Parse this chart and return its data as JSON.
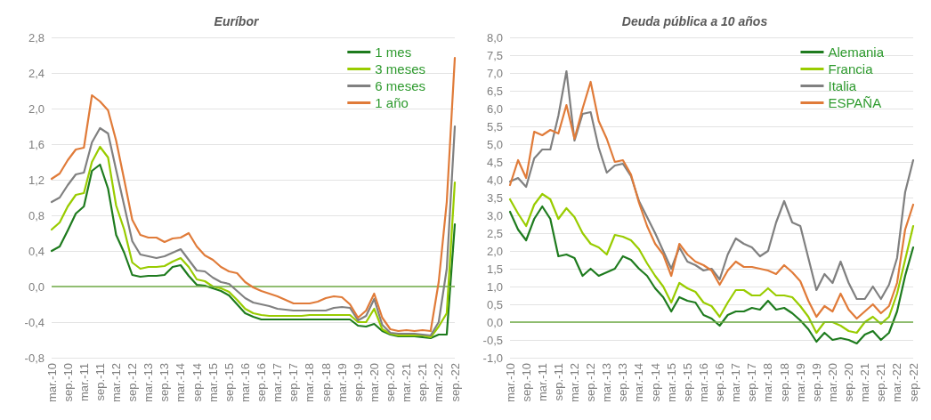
{
  "chart_data": [
    {
      "type": "line",
      "title": "Euríbor",
      "categories": [
        "mar.-10",
        null,
        "sep.-10",
        null,
        "mar.-11",
        null,
        "sep.-11",
        null,
        "mar.-12",
        null,
        "sep.-12",
        null,
        "mar.-13",
        null,
        "sep.-13",
        null,
        "mar.-14",
        null,
        "sep.-14",
        null,
        "mar.-15",
        null,
        "sep.-15",
        null,
        "mar.-16",
        null,
        "sep.-16",
        null,
        "mar.-17",
        null,
        "sep.-17",
        null,
        "mar.-18",
        null,
        "sep.-18",
        null,
        "mar.-19",
        null,
        "sep.-19",
        null,
        "mar.-20",
        null,
        "sep.-20",
        null,
        "mar.-21",
        null,
        "sep.-21",
        null,
        "mar.-22",
        null,
        "sep.-22"
      ],
      "series": [
        {
          "name": "1 mes",
          "color": "#1e7b1e",
          "values": [
            0.4,
            0.45,
            0.63,
            0.82,
            0.9,
            1.3,
            1.37,
            1.1,
            0.58,
            0.38,
            0.13,
            0.11,
            0.12,
            0.12,
            0.13,
            0.22,
            0.24,
            0.12,
            0.02,
            0.01,
            -0.02,
            -0.05,
            -0.1,
            -0.2,
            -0.3,
            -0.34,
            -0.37,
            -0.37,
            -0.37,
            -0.37,
            -0.37,
            -0.37,
            -0.37,
            -0.37,
            -0.37,
            -0.37,
            -0.37,
            -0.37,
            -0.44,
            -0.45,
            -0.42,
            -0.5,
            -0.54,
            -0.56,
            -0.56,
            -0.56,
            -0.57,
            -0.58,
            -0.54,
            -0.54,
            0.7
          ]
        },
        {
          "name": "3 meses",
          "color": "#99cc00",
          "values": [
            0.64,
            0.72,
            0.9,
            1.03,
            1.05,
            1.4,
            1.57,
            1.45,
            0.91,
            0.64,
            0.27,
            0.2,
            0.22,
            0.22,
            0.23,
            0.28,
            0.32,
            0.22,
            0.08,
            0.06,
            0.0,
            -0.02,
            -0.06,
            -0.15,
            -0.25,
            -0.3,
            -0.32,
            -0.33,
            -0.33,
            -0.33,
            -0.33,
            -0.33,
            -0.32,
            -0.32,
            -0.32,
            -0.32,
            -0.32,
            -0.32,
            -0.4,
            -0.4,
            -0.25,
            -0.48,
            -0.53,
            -0.55,
            -0.55,
            -0.55,
            -0.55,
            -0.57,
            -0.45,
            -0.3,
            1.17
          ]
        },
        {
          "name": "6 meses",
          "color": "#808080",
          "values": [
            0.95,
            1.0,
            1.14,
            1.26,
            1.28,
            1.62,
            1.78,
            1.72,
            1.31,
            0.91,
            0.51,
            0.36,
            0.34,
            0.32,
            0.34,
            0.38,
            0.42,
            0.3,
            0.18,
            0.17,
            0.1,
            0.05,
            0.03,
            -0.05,
            -0.13,
            -0.18,
            -0.2,
            -0.22,
            -0.25,
            -0.26,
            -0.27,
            -0.27,
            -0.27,
            -0.27,
            -0.27,
            -0.24,
            -0.23,
            -0.24,
            -0.38,
            -0.33,
            -0.14,
            -0.43,
            -0.52,
            -0.53,
            -0.53,
            -0.53,
            -0.54,
            -0.55,
            -0.4,
            0.2,
            1.8
          ]
        },
        {
          "name": "1 año",
          "color": "#e07b39",
          "values": [
            1.21,
            1.27,
            1.42,
            1.54,
            1.56,
            2.15,
            2.08,
            1.98,
            1.64,
            1.2,
            0.75,
            0.58,
            0.55,
            0.55,
            0.5,
            0.54,
            0.55,
            0.6,
            0.45,
            0.35,
            0.3,
            0.22,
            0.17,
            0.15,
            0.05,
            -0.01,
            -0.05,
            -0.08,
            -0.11,
            -0.15,
            -0.19,
            -0.19,
            -0.19,
            -0.17,
            -0.13,
            -0.11,
            -0.12,
            -0.2,
            -0.35,
            -0.27,
            -0.08,
            -0.35,
            -0.48,
            -0.5,
            -0.49,
            -0.5,
            -0.49,
            -0.5,
            0.05,
            0.95,
            2.57
          ]
        }
      ],
      "ylim": [
        -0.8,
        2.8
      ],
      "yticks": [
        {
          "value": -0.8,
          "label": "-0,8"
        },
        {
          "value": -0.4,
          "label": "-0,4"
        },
        {
          "value": 0,
          "label": "0,0"
        },
        {
          "value": 0.4,
          "label": "0,4"
        },
        {
          "value": 0.8,
          "label": "0,8"
        },
        {
          "value": 1.2,
          "label": "1,2"
        },
        {
          "value": 1.6,
          "label": "1,6"
        },
        {
          "value": 2.0,
          "label": "2,0"
        },
        {
          "value": 2.4,
          "label": "2,4"
        },
        {
          "value": 2.8,
          "label": "2,8"
        }
      ],
      "ref_lines": [
        {
          "axis": "y",
          "value": 0,
          "color": "#70ad47"
        }
      ],
      "grid": "y",
      "legend": "top right",
      "marker": "none",
      "line_style": "solid"
    },
    {
      "type": "line",
      "title": "Deuda pública a 10 años",
      "categories": [
        "mar.-10",
        null,
        "sep.-10",
        null,
        "mar.-11",
        null,
        "sep.-11",
        null,
        "mar.-12",
        null,
        "sep.-12",
        null,
        "mar.-13",
        null,
        "sep.-13",
        null,
        "mar.-14",
        null,
        "sep.-14",
        null,
        "mar.-15",
        null,
        "sep.-15",
        null,
        "mar.-16",
        null,
        "sep.-16",
        null,
        "mar.-17",
        null,
        "sep.-17",
        null,
        "mar.-18",
        null,
        "sep.-18",
        null,
        "mar.-19",
        null,
        "sep.-19",
        null,
        "mar.-20",
        null,
        "sep.-20",
        null,
        "mar.-21",
        null,
        "sep.-21",
        null,
        "mar.-22",
        null,
        "sep.-22"
      ],
      "series": [
        {
          "name": "Alemania",
          "color": "#1e7b1e",
          "values": [
            3.1,
            2.6,
            2.3,
            2.9,
            3.25,
            2.9,
            1.85,
            1.9,
            1.8,
            1.3,
            1.5,
            1.3,
            1.4,
            1.5,
            1.85,
            1.75,
            1.5,
            1.3,
            0.95,
            0.7,
            0.3,
            0.7,
            0.6,
            0.55,
            0.2,
            0.1,
            -0.1,
            0.2,
            0.3,
            0.3,
            0.4,
            0.35,
            0.6,
            0.35,
            0.4,
            0.25,
            0.05,
            -0.2,
            -0.55,
            -0.3,
            -0.5,
            -0.45,
            -0.5,
            -0.6,
            -0.35,
            -0.25,
            -0.5,
            -0.3,
            0.3,
            1.3,
            2.1
          ]
        },
        {
          "name": "Francia",
          "color": "#99cc00",
          "values": [
            3.45,
            3.05,
            2.7,
            3.3,
            3.6,
            3.45,
            2.9,
            3.2,
            2.95,
            2.5,
            2.2,
            2.1,
            1.9,
            2.45,
            2.4,
            2.3,
            2.05,
            1.65,
            1.3,
            1.0,
            0.55,
            1.1,
            0.95,
            0.85,
            0.55,
            0.45,
            0.15,
            0.55,
            0.9,
            0.9,
            0.75,
            0.75,
            0.95,
            0.75,
            0.75,
            0.7,
            0.45,
            0.15,
            -0.3,
            0.0,
            0.0,
            -0.1,
            -0.25,
            -0.3,
            0.0,
            0.15,
            -0.05,
            0.15,
            0.8,
            1.75,
            2.7
          ]
        },
        {
          "name": "Italia",
          "color": "#808080",
          "values": [
            3.95,
            4.05,
            3.8,
            4.6,
            4.85,
            4.85,
            5.8,
            7.05,
            5.1,
            5.85,
            5.9,
            4.9,
            4.2,
            4.4,
            4.45,
            4.1,
            3.4,
            2.95,
            2.5,
            2.0,
            1.5,
            2.1,
            1.7,
            1.6,
            1.45,
            1.5,
            1.2,
            1.9,
            2.35,
            2.2,
            2.1,
            1.85,
            2.0,
            2.8,
            3.4,
            2.8,
            2.7,
            1.8,
            0.9,
            1.35,
            1.1,
            1.7,
            1.1,
            0.65,
            0.65,
            1.0,
            0.65,
            1.05,
            1.8,
            3.65,
            4.55
          ]
        },
        {
          "name": "ESPAÑA",
          "color": "#e07b39",
          "values": [
            3.85,
            4.55,
            4.05,
            5.35,
            5.25,
            5.4,
            5.3,
            6.1,
            5.15,
            6.0,
            6.75,
            5.65,
            5.15,
            4.5,
            4.55,
            4.15,
            3.35,
            2.7,
            2.2,
            1.9,
            1.3,
            2.2,
            1.9,
            1.7,
            1.6,
            1.45,
            1.05,
            1.45,
            1.7,
            1.55,
            1.55,
            1.5,
            1.45,
            1.35,
            1.6,
            1.4,
            1.15,
            0.6,
            0.15,
            0.45,
            0.3,
            0.8,
            0.35,
            0.1,
            0.3,
            0.5,
            0.25,
            0.45,
            1.1,
            2.6,
            3.3
          ]
        }
      ],
      "ylim": [
        -1.0,
        8.0
      ],
      "yticks": [
        {
          "value": -1.0,
          "label": "-1,0"
        },
        {
          "value": -0.5,
          "label": "-0,5"
        },
        {
          "value": 0,
          "label": "0,0"
        },
        {
          "value": 0.5,
          "label": "0,5"
        },
        {
          "value": 1.0,
          "label": "1,0"
        },
        {
          "value": 1.5,
          "label": "1,5"
        },
        {
          "value": 2.0,
          "label": "2,0"
        },
        {
          "value": 2.5,
          "label": "2,5"
        },
        {
          "value": 3.0,
          "label": "3,0"
        },
        {
          "value": 3.5,
          "label": "3,5"
        },
        {
          "value": 4.0,
          "label": "4,0"
        },
        {
          "value": 4.5,
          "label": "4,5"
        },
        {
          "value": 5.0,
          "label": "5,0"
        },
        {
          "value": 5.5,
          "label": "5,5"
        },
        {
          "value": 6.0,
          "label": "6,0"
        },
        {
          "value": 6.5,
          "label": "6,5"
        },
        {
          "value": 7.0,
          "label": "7,0"
        },
        {
          "value": 7.5,
          "label": "7,5"
        },
        {
          "value": 8.0,
          "label": "8,0"
        }
      ],
      "ref_lines": [
        {
          "axis": "y",
          "value": 0,
          "color": "#70ad47"
        }
      ],
      "grid": "y",
      "legend": "top right",
      "marker": "none",
      "line_style": "solid"
    }
  ]
}
